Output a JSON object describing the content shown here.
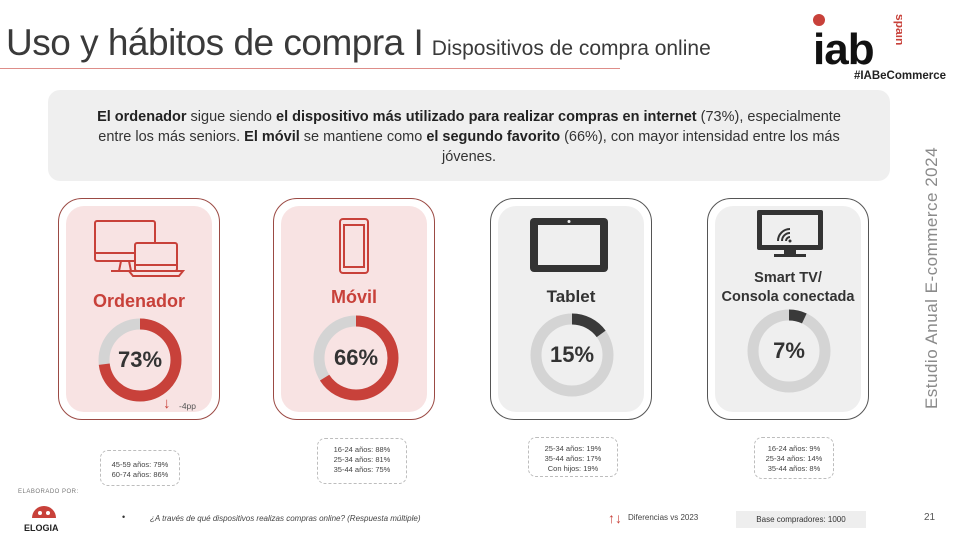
{
  "header": {
    "title": "Uso y hábitos de compra I",
    "subtitle": "Dispositivos de compra online",
    "hashtag": "#IABeCommerce"
  },
  "logo": {
    "text": "iab",
    "spain": "spain"
  },
  "summary": {
    "p1": "El ordenador",
    "p2": " sigue siendo ",
    "p3": "el dispositivo más utilizado para realizar compras en internet",
    "p4": " (73%), especialmente entre los más seniors. ",
    "p5": "El móvil",
    "p6": " se mantiene como ",
    "p7": "el segundo favorito",
    "p8": " (66%), con mayor intensidad entre los más jóvenes."
  },
  "side_text": "Estudio Anual E-commerce 2024",
  "devices": [
    {
      "label": "Ordenador",
      "value_label": "73%",
      "value": 73,
      "icon": "computer-icon",
      "highlight": true,
      "diff": "-4pp",
      "callout": [
        "45-59 años: 79%",
        "60-74 años: 86%"
      ]
    },
    {
      "label": "Móvil",
      "value_label": "66%",
      "value": 66,
      "icon": "smartphone-icon",
      "highlight": true,
      "callout": [
        "16-24 años: 88%",
        "25-34 años: 81%",
        "35-44 años: 75%"
      ]
    },
    {
      "label": "Tablet",
      "value_label": "15%",
      "value": 15,
      "icon": "tablet-icon",
      "highlight": false,
      "callout": [
        "25-34 años: 19%",
        "35-44 años: 17%",
        "Con hijos: 19%"
      ]
    },
    {
      "label_line1": "Smart TV/",
      "label_line2": "Consola conectada",
      "value_label": "7%",
      "value": 7,
      "icon": "smart-tv-icon",
      "highlight": false,
      "callout": [
        "16-24 años: 9%",
        "25-34 años: 14%",
        "35-44 años: 8%"
      ]
    }
  ],
  "colors": {
    "accent": "#c8413a",
    "track": "#d4d4d4",
    "dark_arc": "#3a3a3a"
  },
  "footer": {
    "elaborado": "ELABORADO POR:",
    "elogia": "ELOGIA",
    "bullet": "•",
    "question": "¿A través de qué dispositivos realizas compras online? (Respuesta múltiple)",
    "diff_label": "Diferencias vs 2023",
    "base": "Base compradores: 1000",
    "page": "21"
  }
}
